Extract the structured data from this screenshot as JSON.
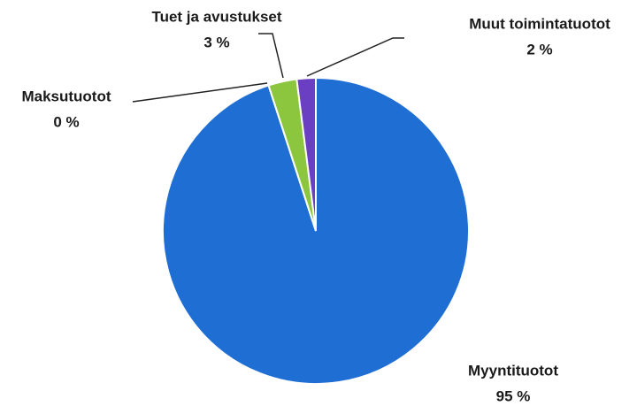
{
  "chart_data": {
    "type": "pie",
    "categories": [
      "Myyntituotot",
      "Maksutuotot",
      "Tuet ja avustukset",
      "Muut toimintatuotot"
    ],
    "values": [
      95,
      0,
      3,
      2
    ],
    "value_labels": [
      "95 %",
      "0 %",
      "3 %",
      "2 %"
    ],
    "colors": [
      "#1f6ed4",
      "#d9d9d9",
      "#8cc63e",
      "#6a3fc2"
    ]
  }
}
